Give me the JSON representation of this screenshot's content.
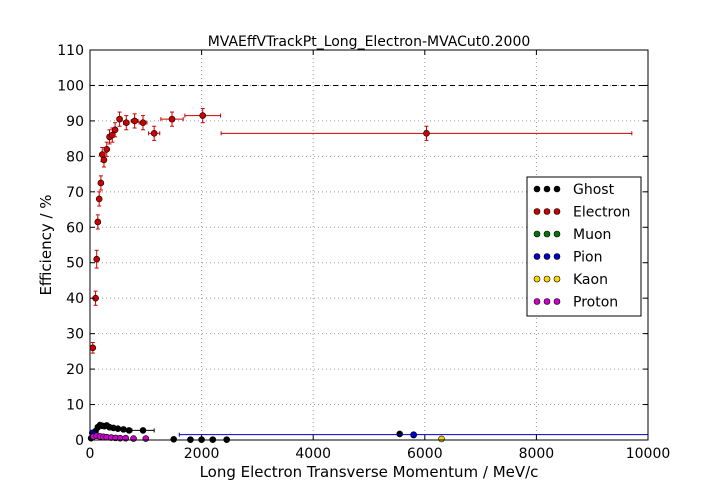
{
  "chart_data": {
    "type": "scatter",
    "title": "MVAEffVTrackPt_Long_Electron-MVACut0.2000",
    "xlabel": "Long Electron Transverse Momentum / MeV/c",
    "ylabel": "Efficiency / %",
    "xlim": [
      0,
      10000
    ],
    "ylim": [
      0,
      110
    ],
    "x_ticks": [
      0,
      2000,
      4000,
      6000,
      8000,
      10000
    ],
    "y_ticks": [
      0,
      10,
      20,
      30,
      40,
      50,
      60,
      70,
      80,
      90,
      100,
      110
    ],
    "grid": true,
    "legend_position": "right",
    "reference_line": 100,
    "series": [
      {
        "name": "Ghost",
        "color": "#000000",
        "points": [
          {
            "x": 20,
            "y": 0.5
          },
          {
            "x": 60,
            "y": 1.2
          },
          {
            "x": 100,
            "y": 2.5
          },
          {
            "x": 140,
            "y": 3.6
          },
          {
            "x": 180,
            "y": 4.2
          },
          {
            "x": 220,
            "y": 4.0
          },
          {
            "x": 260,
            "y": 3.9
          },
          {
            "x": 300,
            "y": 4.1
          },
          {
            "x": 350,
            "y": 3.6
          },
          {
            "x": 420,
            "y": 3.4
          },
          {
            "x": 500,
            "y": 3.2
          },
          {
            "x": 600,
            "y": 3.0
          },
          {
            "x": 700,
            "y": 2.7
          },
          {
            "x": 950,
            "y": 2.7,
            "xerr": 200
          },
          {
            "x": 1500,
            "y": 0.2
          },
          {
            "x": 1800,
            "y": 0.1
          },
          {
            "x": 2000,
            "y": 0.1
          },
          {
            "x": 2200,
            "y": 0.1
          },
          {
            "x": 2450,
            "y": 0.1
          },
          {
            "x": 5550,
            "y": 1.7
          },
          {
            "x": 5800,
            "y": 1.4
          }
        ]
      },
      {
        "name": "Electron",
        "color": "#cc0000",
        "points": [
          {
            "x": 50,
            "y": 26.0,
            "yerr": 1.5,
            "xerr": 25
          },
          {
            "x": 100,
            "y": 40.0,
            "yerr": 2.0,
            "xerr": 20
          },
          {
            "x": 120,
            "y": 51.0,
            "yerr": 2.5,
            "xerr": 15
          },
          {
            "x": 140,
            "y": 61.5,
            "yerr": 2.0,
            "xerr": 15
          },
          {
            "x": 165,
            "y": 68.0,
            "yerr": 2.0,
            "xerr": 15
          },
          {
            "x": 195,
            "y": 72.5,
            "yerr": 2.0,
            "xerr": 15
          },
          {
            "x": 220,
            "y": 80.5,
            "yerr": 2.0,
            "xerr": 15
          },
          {
            "x": 250,
            "y": 79.0,
            "yerr": 2.0,
            "xerr": 15
          },
          {
            "x": 300,
            "y": 82.0,
            "yerr": 2.0,
            "xerr": 25
          },
          {
            "x": 350,
            "y": 85.5,
            "yerr": 2.0,
            "xerr": 25
          },
          {
            "x": 400,
            "y": 86.0,
            "yerr": 2.0,
            "xerr": 25
          },
          {
            "x": 450,
            "y": 87.5,
            "yerr": 2.0,
            "xerr": 25
          },
          {
            "x": 530,
            "y": 90.5,
            "yerr": 2.0,
            "xerr": 40
          },
          {
            "x": 650,
            "y": 89.5,
            "yerr": 2.0,
            "xerr": 50
          },
          {
            "x": 800,
            "y": 90.0,
            "yerr": 2.0,
            "xerr": 60
          },
          {
            "x": 950,
            "y": 89.5,
            "yerr": 2.0,
            "xerr": 70
          },
          {
            "x": 1150,
            "y": 86.5,
            "yerr": 2.0,
            "xerr": 100
          },
          {
            "x": 1470,
            "y": 90.5,
            "yerr": 2.0,
            "xerr": 200
          },
          {
            "x": 2020,
            "y": 91.5,
            "yerr": 2.0,
            "xerr": 320
          },
          {
            "x": 6030,
            "y": 86.5,
            "yerr": 2.0,
            "xerr": 3680
          }
        ]
      },
      {
        "name": "Muon",
        "color": "#007700",
        "points": []
      },
      {
        "name": "Pion",
        "color": "#0000cc",
        "points": [
          {
            "x": 40,
            "y": 2.0
          },
          {
            "x": 80,
            "y": 1.5
          },
          {
            "x": 5800,
            "y": 1.5,
            "xerr": 4200
          }
        ]
      },
      {
        "name": "Kaon",
        "color": "#ffd700",
        "points": [
          {
            "x": 6300,
            "y": 0.3
          }
        ]
      },
      {
        "name": "Proton",
        "color": "#cc00cc",
        "points": [
          {
            "x": 60,
            "y": 1.0
          },
          {
            "x": 120,
            "y": 1.2
          },
          {
            "x": 180,
            "y": 1.0
          },
          {
            "x": 240,
            "y": 0.9
          },
          {
            "x": 300,
            "y": 0.8
          },
          {
            "x": 380,
            "y": 0.7
          },
          {
            "x": 460,
            "y": 0.6
          },
          {
            "x": 540,
            "y": 0.5
          },
          {
            "x": 640,
            "y": 0.5
          },
          {
            "x": 780,
            "y": 0.4
          },
          {
            "x": 1000,
            "y": 0.4
          }
        ]
      }
    ]
  }
}
